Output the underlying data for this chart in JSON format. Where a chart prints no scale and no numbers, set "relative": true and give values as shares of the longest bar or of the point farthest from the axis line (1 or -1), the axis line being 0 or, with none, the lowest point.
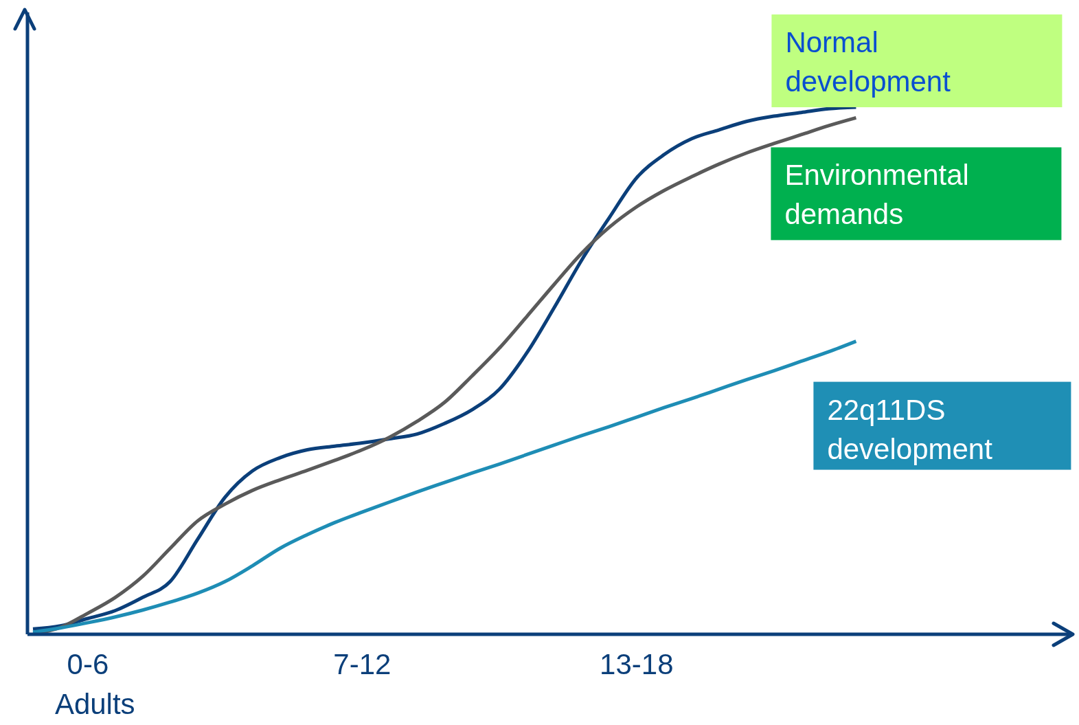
{
  "chart_data": {
    "type": "line",
    "relative": true,
    "categories": [
      null,
      null,
      "0-6",
      null,
      null,
      null,
      null,
      null,
      null,
      null,
      null,
      null,
      "7-12",
      null,
      null,
      null,
      null,
      null,
      null,
      null,
      null,
      null,
      "13-18",
      null,
      null,
      null,
      null,
      null,
      null,
      null,
      null
    ],
    "series": [
      {
        "name": "Normal development",
        "color": "#0b3f7a",
        "values": [
          0.01,
          0.016,
          0.03,
          0.045,
          0.07,
          0.1,
          0.18,
          0.26,
          0.31,
          0.335,
          0.35,
          0.357,
          0.363,
          0.371,
          0.38,
          0.4,
          0.426,
          0.465,
          0.534,
          0.62,
          0.71,
          0.79,
          0.866,
          0.91,
          0.94,
          0.957,
          0.973,
          0.983,
          0.99,
          0.997,
          1
        ]
      },
      {
        "name": "Environmental demands",
        "color": "#5a5a5a",
        "values": [
          0,
          0.013,
          0.04,
          0.07,
          0.11,
          0.163,
          0.215,
          0.247,
          0.273,
          0.293,
          0.311,
          0.33,
          0.35,
          0.374,
          0.404,
          0.44,
          0.49,
          0.543,
          0.603,
          0.664,
          0.723,
          0.772,
          0.811,
          0.842,
          0.868,
          0.892,
          0.913,
          0.931,
          0.948,
          0.965,
          0.98
        ]
      },
      {
        "name": "22q11DS development",
        "color": "#1e8db5",
        "values": [
          0.004,
          0.012,
          0.022,
          0.033,
          0.046,
          0.061,
          0.078,
          0.1,
          0.13,
          0.163,
          0.189,
          0.212,
          0.232,
          0.251,
          0.27,
          0.288,
          0.306,
          0.323,
          0.341,
          0.359,
          0.377,
          0.394,
          0.412,
          0.43,
          0.447,
          0.465,
          0.483,
          0.5,
          0.518,
          0.536,
          0.556
        ]
      }
    ],
    "annotations": [
      "Adults"
    ],
    "grid": false,
    "legend": false,
    "marker": "none",
    "line_style": "solid"
  }
}
